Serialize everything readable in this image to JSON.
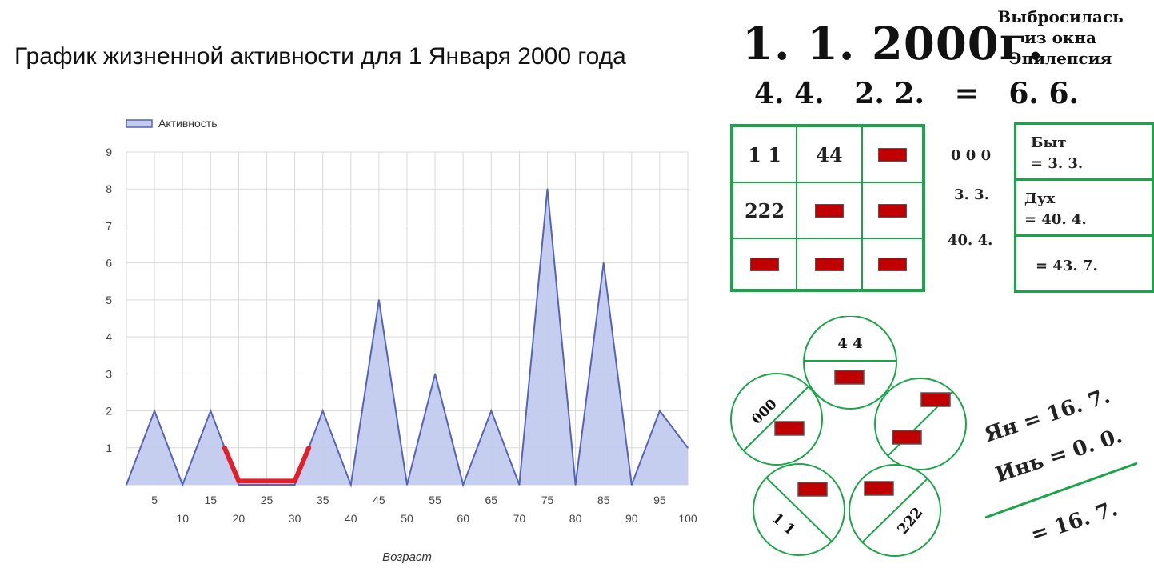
{
  "title": "График жизненной активности для 1 Января 2000 года",
  "chart_data": {
    "type": "area",
    "legend": {
      "label": "Активность",
      "position": "top-left"
    },
    "xlabel": "Возраст",
    "ylabel": "",
    "x": [
      0,
      5,
      10,
      15,
      20,
      25,
      30,
      35,
      40,
      45,
      50,
      55,
      60,
      65,
      70,
      75,
      80,
      85,
      90,
      95,
      100
    ],
    "values": [
      0,
      2,
      0,
      2,
      0,
      0,
      0,
      2,
      0,
      5,
      0,
      3,
      0,
      2,
      0,
      8,
      0,
      6,
      0,
      2,
      1
    ],
    "x_tick_labels": [
      "5",
      "10",
      "15",
      "20",
      "25",
      "30",
      "35",
      "40",
      "45",
      "50",
      "55",
      "60",
      "65",
      "70",
      "75",
      "80",
      "85",
      "90",
      "95",
      "100"
    ],
    "y_tick_labels": [
      "1",
      "2",
      "3",
      "4",
      "5",
      "6",
      "7",
      "8",
      "9"
    ],
    "ylim": [
      0,
      9
    ],
    "xlim": [
      0,
      100
    ],
    "grid": true,
    "highlight": {
      "color": "#e0202a",
      "points": [
        [
          17.5,
          1
        ],
        [
          20,
          0.1
        ],
        [
          30,
          0.1
        ],
        [
          32.5,
          1
        ]
      ]
    },
    "colors": {
      "line": "#5563b8",
      "fill": "#c3cbee",
      "grid": "#d9d9d9"
    }
  },
  "header": {
    "date": "1. 1. 2000г.",
    "sums": "4. 4.   2. 2.   =   6. 6.",
    "note_lines": [
      "Выбросилась",
      "из окна",
      "Эпилепсия"
    ]
  },
  "matrix": {
    "cells": [
      "1 1",
      "44",
      "",
      "222",
      "",
      "",
      "",
      "",
      ""
    ],
    "side_values": [
      "0 0 0",
      "3. 3.",
      "40. 4."
    ],
    "colors": {
      "border": "#1aa548",
      "empty": "#c00000"
    }
  },
  "summary": {
    "byt_label": "Быт",
    "byt_value": "=  3. 3.",
    "dukh_label": "Дух",
    "dukh_value": "=  40. 4.",
    "total": "=  43. 7."
  },
  "circles": {
    "labels": [
      "4 4",
      "000",
      "1 1",
      "222"
    ]
  },
  "yin_yang": {
    "yan": "Ян =  16. 7.",
    "yin": "Инь =  0. 0.",
    "total": "=  16. 7."
  }
}
